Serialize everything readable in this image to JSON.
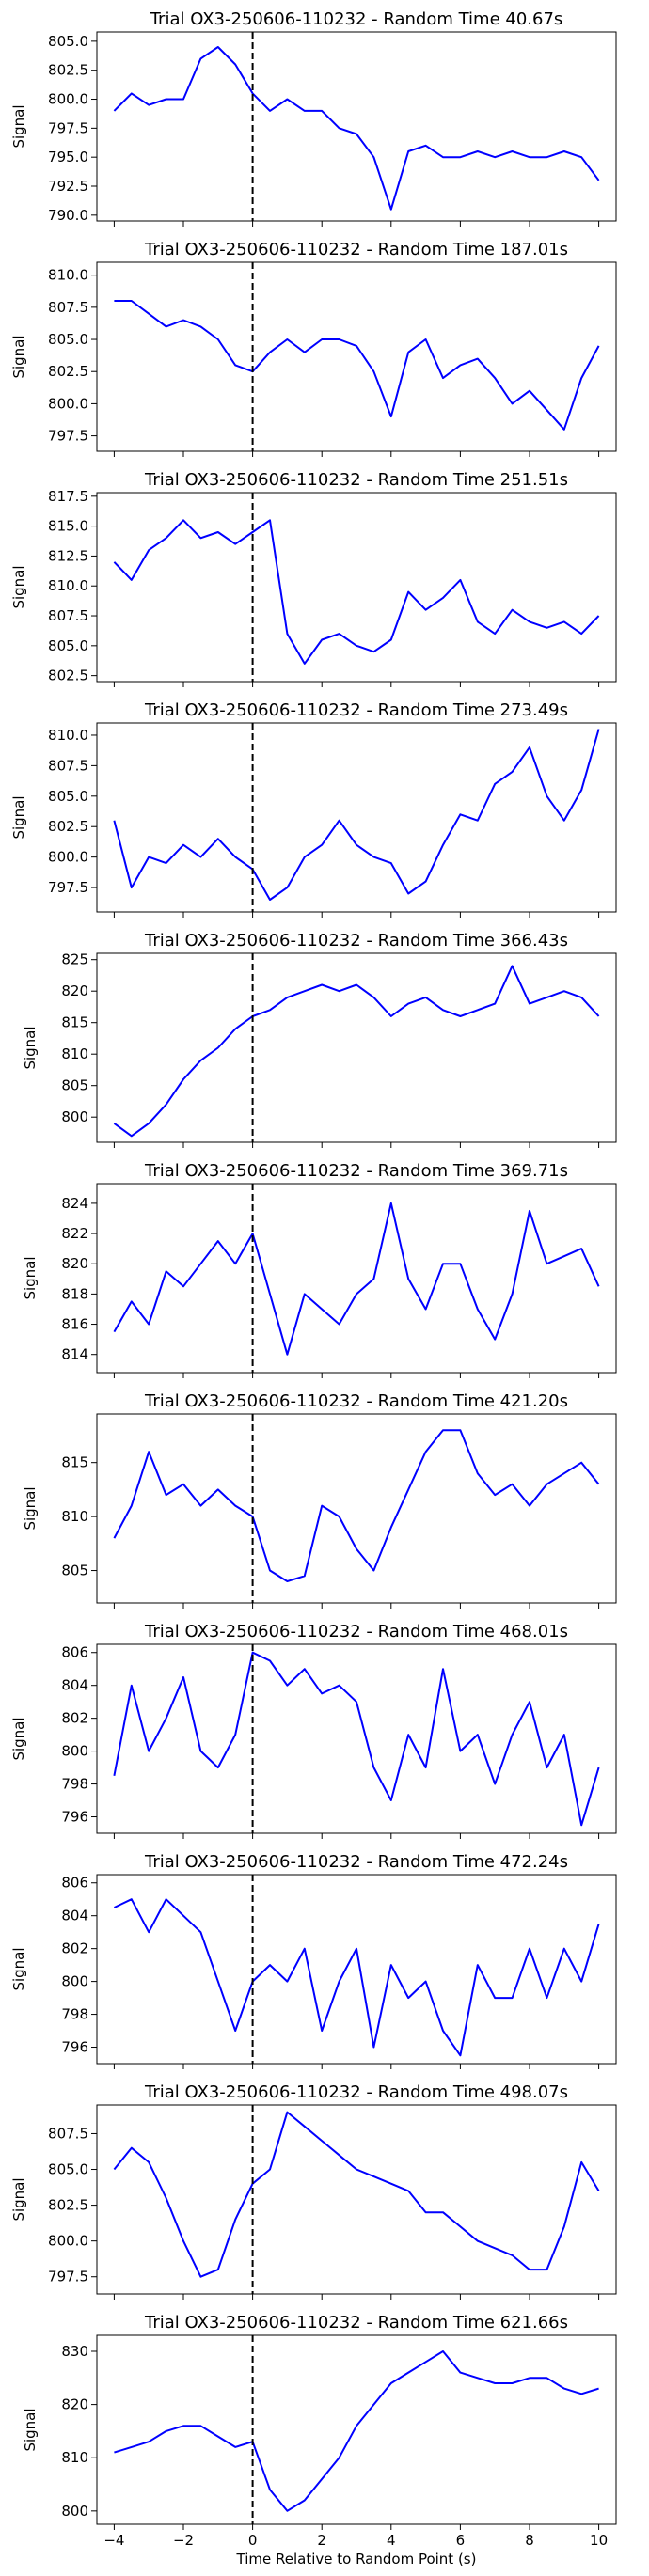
{
  "colors": {
    "signal": "#0000ff",
    "marker": "#000000",
    "axes": "#000000",
    "background": "#ffffff"
  },
  "chart_data": [
    {
      "type": "line",
      "title": "Trial OX3-250606-110232 - Random Time 40.67s",
      "ylabel": "Signal",
      "xlabel": "",
      "xlim": [
        -4.5,
        10.5
      ],
      "ylim": [
        789.5,
        805.8
      ],
      "xticks": [
        -4,
        -2,
        0,
        2,
        4,
        6,
        8,
        10
      ],
      "yticks": [
        790.0,
        792.5,
        795.0,
        797.5,
        800.0,
        802.5,
        805.0
      ],
      "ytick_labels": [
        "790.0",
        "792.5",
        "795.0",
        "797.5",
        "800.0",
        "802.5",
        "805.0"
      ],
      "vline_x": 0,
      "x": [
        -4,
        -3.5,
        -3,
        -2.5,
        -2,
        -1.5,
        -1,
        -0.5,
        0,
        0.5,
        1,
        1.5,
        2,
        2.5,
        3,
        3.5,
        4,
        4.5,
        5,
        5.5,
        6,
        6.5,
        7,
        7.5,
        8,
        8.5,
        9,
        9.5,
        10
      ],
      "y": [
        799,
        800.5,
        799.5,
        800,
        800,
        803.5,
        804.5,
        803,
        800.5,
        799,
        800,
        799,
        799,
        797.5,
        797,
        795,
        790.5,
        795.5,
        796,
        795,
        795,
        795.5,
        795,
        795.5,
        795,
        795,
        795.5,
        795,
        793
      ]
    },
    {
      "type": "line",
      "title": "Trial OX3-250606-110232 - Random Time 187.01s",
      "ylabel": "Signal",
      "xlabel": "",
      "xlim": [
        -4.5,
        10.5
      ],
      "ylim": [
        796.3,
        811
      ],
      "xticks": [
        -4,
        -2,
        0,
        2,
        4,
        6,
        8,
        10
      ],
      "yticks": [
        797.5,
        800.0,
        802.5,
        805.0,
        807.5,
        810.0
      ],
      "ytick_labels": [
        "797.5",
        "800.0",
        "802.5",
        "805.0",
        "807.5",
        "810.0"
      ],
      "vline_x": 0,
      "x": [
        -4,
        -3.5,
        -3,
        -2.5,
        -2,
        -1.5,
        -1,
        -0.5,
        0,
        0.5,
        1,
        1.5,
        2,
        2.5,
        3,
        3.5,
        4,
        4.5,
        5,
        5.5,
        6,
        6.5,
        7,
        7.5,
        8,
        8.5,
        9,
        9.5,
        10
      ],
      "y": [
        808,
        808,
        807,
        806,
        806.5,
        806,
        805,
        803,
        802.5,
        804,
        805,
        804,
        805,
        805,
        804.5,
        802.5,
        799,
        804,
        805,
        802,
        803,
        803.5,
        802,
        800,
        801,
        799.5,
        798,
        802,
        804.5
      ]
    },
    {
      "type": "line",
      "title": "Trial OX3-250606-110232 - Random Time 251.51s",
      "ylabel": "Signal",
      "xlabel": "",
      "xlim": [
        -4.5,
        10.5
      ],
      "ylim": [
        802,
        817.8
      ],
      "xticks": [
        -4,
        -2,
        0,
        2,
        4,
        6,
        8,
        10
      ],
      "yticks": [
        802.5,
        805.0,
        807.5,
        810.0,
        812.5,
        815.0,
        817.5
      ],
      "ytick_labels": [
        "802.5",
        "805.0",
        "807.5",
        "810.0",
        "812.5",
        "815.0",
        "817.5"
      ],
      "vline_x": 0,
      "x": [
        -4,
        -3.5,
        -3,
        -2.5,
        -2,
        -1.5,
        -1,
        -0.5,
        0,
        0.5,
        1,
        1.5,
        2,
        2.5,
        3,
        3.5,
        4,
        4.5,
        5,
        5.5,
        6,
        6.5,
        7,
        7.5,
        8,
        8.5,
        9,
        9.5,
        10
      ],
      "y": [
        812,
        810.5,
        813,
        814,
        815.5,
        814,
        814.5,
        813.5,
        814.5,
        815.5,
        806,
        803.5,
        805.5,
        806,
        805,
        804.5,
        805.5,
        809.5,
        808,
        809,
        810.5,
        807,
        806,
        808,
        807,
        806.5,
        807,
        806,
        807.5
      ]
    },
    {
      "type": "line",
      "title": "Trial OX3-250606-110232 - Random Time 273.49s",
      "ylabel": "Signal",
      "xlabel": "",
      "xlim": [
        -4.5,
        10.5
      ],
      "ylim": [
        795.5,
        811
      ],
      "xticks": [
        -4,
        -2,
        0,
        2,
        4,
        6,
        8,
        10
      ],
      "yticks": [
        797.5,
        800.0,
        802.5,
        805.0,
        807.5,
        810.0
      ],
      "ytick_labels": [
        "797.5",
        "800.0",
        "802.5",
        "805.0",
        "807.5",
        "810.0"
      ],
      "vline_x": 0,
      "x": [
        -4,
        -3.5,
        -3,
        -2.5,
        -2,
        -1.5,
        -1,
        -0.5,
        0,
        0.5,
        1,
        1.5,
        2,
        2.5,
        3,
        3.5,
        4,
        4.5,
        5,
        5.5,
        6,
        6.5,
        7,
        7.5,
        8,
        8.5,
        9,
        9.5,
        10
      ],
      "y": [
        803,
        797.5,
        800,
        799.5,
        801,
        800,
        801.5,
        800,
        799,
        796.5,
        797.5,
        800,
        801,
        803,
        801,
        800,
        799.5,
        797,
        798,
        801,
        803.5,
        803,
        806,
        807,
        809,
        805,
        803,
        805.5,
        810.5
      ]
    },
    {
      "type": "line",
      "title": "Trial OX3-250606-110232 - Random Time 366.43s",
      "ylabel": "Signal",
      "xlabel": "",
      "xlim": [
        -4.5,
        10.5
      ],
      "ylim": [
        796,
        826
      ],
      "xticks": [
        -4,
        -2,
        0,
        2,
        4,
        6,
        8,
        10
      ],
      "yticks": [
        800,
        805,
        810,
        815,
        820,
        825
      ],
      "ytick_labels": [
        "800",
        "805",
        "810",
        "815",
        "820",
        "825"
      ],
      "vline_x": 0,
      "x": [
        -4,
        -3.5,
        -3,
        -2.5,
        -2,
        -1.5,
        -1,
        -0.5,
        0,
        0.5,
        1,
        1.5,
        2,
        2.5,
        3,
        3.5,
        4,
        4.5,
        5,
        5.5,
        6,
        6.5,
        7,
        7.5,
        8,
        8.5,
        9,
        9.5,
        10
      ],
      "y": [
        799,
        797,
        799,
        802,
        806,
        809,
        811,
        814,
        816,
        817,
        819,
        820,
        821,
        820,
        821,
        819,
        816,
        818,
        819,
        817,
        816,
        817,
        818,
        824,
        818,
        819,
        820,
        819,
        816
      ]
    },
    {
      "type": "line",
      "title": "Trial OX3-250606-110232 - Random Time 369.71s",
      "ylabel": "Signal",
      "xlabel": "",
      "xlim": [
        -4.5,
        10.5
      ],
      "ylim": [
        812.8,
        825.3
      ],
      "xticks": [
        -4,
        -2,
        0,
        2,
        4,
        6,
        8,
        10
      ],
      "yticks": [
        814,
        816,
        818,
        820,
        822,
        824
      ],
      "ytick_labels": [
        "814",
        "816",
        "818",
        "820",
        "822",
        "824"
      ],
      "vline_x": 0,
      "x": [
        -4,
        -3.5,
        -3,
        -2.5,
        -2,
        -1.5,
        -1,
        -0.5,
        0,
        0.5,
        1,
        1.5,
        2,
        2.5,
        3,
        3.5,
        4,
        4.5,
        5,
        5.5,
        6,
        6.5,
        7,
        7.5,
        8,
        8.5,
        9,
        9.5,
        10
      ],
      "y": [
        815.5,
        817.5,
        816,
        819.5,
        818.5,
        820,
        821.5,
        820,
        822,
        818,
        814,
        818,
        817,
        816,
        818,
        819,
        824,
        819,
        817,
        820,
        820,
        817,
        815,
        818,
        823.5,
        820,
        820.5,
        821,
        818.5
      ]
    },
    {
      "type": "line",
      "title": "Trial OX3-250606-110232 - Random Time 421.20s",
      "ylabel": "Signal",
      "xlabel": "",
      "xlim": [
        -4.5,
        10.5
      ],
      "ylim": [
        802,
        819.5
      ],
      "xticks": [
        -4,
        -2,
        0,
        2,
        4,
        6,
        8,
        10
      ],
      "yticks": [
        805,
        810,
        815
      ],
      "ytick_labels": [
        "805",
        "810",
        "815"
      ],
      "vline_x": 0,
      "x": [
        -4,
        -3.5,
        -3,
        -2.5,
        -2,
        -1.5,
        -1,
        -0.5,
        0,
        0.5,
        1,
        1.5,
        2,
        2.5,
        3,
        3.5,
        4,
        4.5,
        5,
        5.5,
        6,
        6.5,
        7,
        7.5,
        8,
        8.5,
        9,
        9.5,
        10
      ],
      "y": [
        808,
        811,
        816,
        812,
        813,
        811,
        812.5,
        811,
        810,
        805,
        804,
        804.5,
        811,
        810,
        807,
        805,
        809,
        812.5,
        816,
        818,
        818,
        814,
        812,
        813,
        811,
        813,
        814,
        815,
        813
      ]
    },
    {
      "type": "line",
      "title": "Trial OX3-250606-110232 - Random Time 468.01s",
      "ylabel": "Signal",
      "xlabel": "",
      "xlim": [
        -4.5,
        10.5
      ],
      "ylim": [
        795,
        806.5
      ],
      "xticks": [
        -4,
        -2,
        0,
        2,
        4,
        6,
        8,
        10
      ],
      "yticks": [
        796,
        798,
        800,
        802,
        804,
        806
      ],
      "ytick_labels": [
        "796",
        "798",
        "800",
        "802",
        "804",
        "806"
      ],
      "vline_x": 0,
      "x": [
        -4,
        -3.5,
        -3,
        -2.5,
        -2,
        -1.5,
        -1,
        -0.5,
        0,
        0.5,
        1,
        1.5,
        2,
        2.5,
        3,
        3.5,
        4,
        4.5,
        5,
        5.5,
        6,
        6.5,
        7,
        7.5,
        8,
        8.5,
        9,
        9.5,
        10
      ],
      "y": [
        798.5,
        804,
        800,
        802,
        804.5,
        800,
        799,
        801,
        806,
        805.5,
        804,
        805,
        803.5,
        804,
        803,
        799,
        797,
        801,
        799,
        805,
        800,
        801,
        798,
        801,
        803,
        799,
        801,
        795.5,
        799
      ]
    },
    {
      "type": "line",
      "title": "Trial OX3-250606-110232 - Random Time 472.24s",
      "ylabel": "Signal",
      "xlabel": "",
      "xlim": [
        -4.5,
        10.5
      ],
      "ylim": [
        795,
        806.5
      ],
      "xticks": [
        -4,
        -2,
        0,
        2,
        4,
        6,
        8,
        10
      ],
      "yticks": [
        796,
        798,
        800,
        802,
        804,
        806
      ],
      "ytick_labels": [
        "796",
        "798",
        "800",
        "802",
        "804",
        "806"
      ],
      "vline_x": 0,
      "x": [
        -4,
        -3.5,
        -3,
        -2.5,
        -2,
        -1.5,
        -1,
        -0.5,
        0,
        0.5,
        1,
        1.5,
        2,
        2.5,
        3,
        3.5,
        4,
        4.5,
        5,
        5.5,
        6,
        6.5,
        7,
        7.5,
        8,
        8.5,
        9,
        9.5,
        10
      ],
      "y": [
        804.5,
        805,
        803,
        805,
        804,
        803,
        800,
        797,
        800,
        801,
        800,
        802,
        797,
        800,
        802,
        796,
        801,
        799,
        800,
        797,
        795.5,
        801,
        799,
        799,
        802,
        799,
        802,
        800,
        803.5
      ]
    },
    {
      "type": "line",
      "title": "Trial OX3-250606-110232 - Random Time 498.07s",
      "ylabel": "Signal",
      "xlabel": "",
      "xlim": [
        -4.5,
        10.5
      ],
      "ylim": [
        796.3,
        809.5
      ],
      "xticks": [
        -4,
        -2,
        0,
        2,
        4,
        6,
        8,
        10
      ],
      "yticks": [
        797.5,
        800.0,
        802.5,
        805.0,
        807.5
      ],
      "ytick_labels": [
        "797.5",
        "800.0",
        "802.5",
        "805.0",
        "807.5"
      ],
      "vline_x": 0,
      "x": [
        -4,
        -3.5,
        -3,
        -2.5,
        -2,
        -1.5,
        -1,
        -0.5,
        0,
        0.5,
        1,
        1.5,
        2,
        2.5,
        3,
        3.5,
        4,
        4.5,
        5,
        5.5,
        6,
        6.5,
        7,
        7.5,
        8,
        8.5,
        9,
        9.5,
        10
      ],
      "y": [
        805,
        806.5,
        805.5,
        803,
        800,
        797.5,
        798,
        801.5,
        804,
        805,
        809,
        808,
        807,
        806,
        805,
        804.5,
        804,
        803.5,
        802,
        802,
        801,
        800,
        799.5,
        799,
        798,
        798,
        801,
        805.5,
        803.5
      ]
    },
    {
      "type": "line",
      "title": "Trial OX3-250606-110232 - Random Time 621.66s",
      "ylabel": "Signal",
      "xlabel": "Time Relative to Random Point (s)",
      "xlim": [
        -4.5,
        10.5
      ],
      "ylim": [
        797.5,
        833
      ],
      "xticks": [
        -4,
        -2,
        0,
        2,
        4,
        6,
        8,
        10
      ],
      "yticks": [
        800,
        810,
        820,
        830
      ],
      "ytick_labels": [
        "800",
        "810",
        "820",
        "830"
      ],
      "vline_x": 0,
      "x": [
        -4,
        -3.5,
        -3,
        -2.5,
        -2,
        -1.5,
        -1,
        -0.5,
        0,
        0.5,
        1,
        1.5,
        2,
        2.5,
        3,
        3.5,
        4,
        4.5,
        5,
        5.5,
        6,
        6.5,
        7,
        7.5,
        8,
        8.5,
        9,
        9.5,
        10
      ],
      "y": [
        811,
        812,
        813,
        815,
        816,
        816,
        814,
        812,
        813,
        804,
        800,
        802,
        806,
        810,
        816,
        820,
        824,
        826,
        828,
        830,
        826,
        825,
        824,
        824,
        825,
        825,
        823,
        822,
        823
      ]
    }
  ],
  "xtick_labels": [
    "−4",
    "−2",
    "0",
    "2",
    "4",
    "6",
    "8",
    "10"
  ]
}
